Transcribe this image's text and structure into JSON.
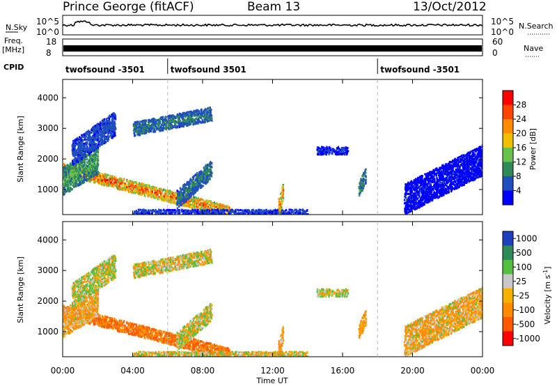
{
  "header": {
    "station": "Prince George (fitACF)",
    "beam": "Beam 13",
    "date": "13/Oct/2012"
  },
  "noise_panel": {
    "left_label": "N.Sky",
    "right_label": "N.Search",
    "ticks": [
      "10^5",
      "10^0"
    ]
  },
  "freq_panel": {
    "label_line1": "Freq.",
    "label_line2": "[MHz]",
    "left_ticks": [
      "18",
      "8"
    ],
    "right_ticks": [
      "60",
      "0"
    ],
    "right_label": "Nave"
  },
  "cpid_panel": {
    "label": "CPID",
    "segments": [
      {
        "name": "twofsound -3501",
        "start_hour": 0
      },
      {
        "name": "twofsound 3501",
        "start_hour": 6
      },
      {
        "name": "twofsound -3501",
        "start_hour": 18
      }
    ]
  },
  "power_panel": {
    "ylabel": "Slant Range [km]",
    "yticks": [
      "4000",
      "3000",
      "2000",
      "1000"
    ],
    "colorbar_label": "Power [dB]",
    "colorbar_ticks": [
      "28",
      "24",
      "20",
      "16",
      "12",
      "8",
      "4"
    ],
    "colors": [
      "#0000ff",
      "#1f4fbf",
      "#2e8b57",
      "#66c24a",
      "#f0c000",
      "#ff8c00",
      "#ff4500",
      "#ff0000"
    ]
  },
  "velocity_panel": {
    "ylabel": "Slant Range [km]",
    "yticks": [
      "4000",
      "3000",
      "2000",
      "1000"
    ],
    "colorbar_label": "Velocity [m s",
    "colorbar_sup": "-1",
    "colorbar_label_end": "]",
    "colorbar_ticks": [
      "1000",
      "500",
      "100",
      "25",
      "-25",
      "-100",
      "-500",
      "-1000"
    ],
    "colors": [
      "#1f3fbf",
      "#2e8b57",
      "#55c040",
      "#c8c8c8",
      "#f5b000",
      "#ff8c00",
      "#ff5a00",
      "#ff0000"
    ]
  },
  "time_axis": {
    "label": "Time UT",
    "ticks": [
      "00:00",
      "04:00",
      "08:00",
      "12:00",
      "16:00",
      "20:00",
      "00:00"
    ]
  },
  "chart_data": {
    "type": "heatmap",
    "title": "Prince George (fitACF)",
    "xlabel": "Time UT",
    "ylabel": "Slant Range [km]",
    "xlim_hours": [
      0,
      24
    ],
    "ylim_km": [
      180,
      4600
    ],
    "power_range_db": [
      0,
      32
    ],
    "velocity_range_ms": [
      -1200,
      1200
    ],
    "scatter_regions": [
      {
        "name": "near-range-band",
        "t_start": 0.0,
        "t_end": 9.5,
        "r_start": 1700,
        "r_end": 300,
        "width_km": 380,
        "power_db": 28,
        "velocity": -300
      },
      {
        "name": "early-mid-range",
        "t_start": 0.0,
        "t_end": 2.0,
        "r_start": 1300,
        "r_end": 2000,
        "width_km": 900,
        "power_db": 14,
        "velocity": -80
      },
      {
        "name": "far-range-0130",
        "t_start": 0.5,
        "t_end": 3.0,
        "r_start": 2200,
        "r_end": 3200,
        "width_km": 800,
        "power_db": 7,
        "velocity": 40
      },
      {
        "name": "far-range-0500",
        "t_start": 4.0,
        "t_end": 8.5,
        "r_start": 3000,
        "r_end": 3500,
        "width_km": 450,
        "power_db": 10,
        "velocity": 10
      },
      {
        "name": "ground-scatter-bottom",
        "t_start": 4.0,
        "t_end": 14.0,
        "r_start": 300,
        "r_end": 300,
        "width_km": 150,
        "power_db": 6,
        "velocity": 0
      },
      {
        "name": "echo-0630",
        "t_start": 6.5,
        "t_end": 8.5,
        "r_start": 700,
        "r_end": 1700,
        "width_km": 600,
        "power_db": 10,
        "velocity": 20
      },
      {
        "name": "echo-1230",
        "t_start": 12.3,
        "t_end": 12.6,
        "r_start": 400,
        "r_end": 1000,
        "width_km": 600,
        "power_db": 27,
        "velocity": -100
      },
      {
        "name": "echo-1500",
        "t_start": 14.5,
        "t_end": 16.3,
        "r_start": 2300,
        "r_end": 2300,
        "width_km": 250,
        "power_db": 5,
        "velocity": 30
      },
      {
        "name": "echo-1700",
        "t_start": 16.9,
        "t_end": 17.3,
        "r_start": 1000,
        "r_end": 1500,
        "width_km": 500,
        "power_db": 12,
        "velocity": -150
      },
      {
        "name": "late-scatter",
        "t_start": 19.5,
        "t_end": 24.0,
        "r_start": 700,
        "r_end": 2000,
        "width_km": 1000,
        "power_db": 4,
        "velocity": -60
      }
    ]
  }
}
